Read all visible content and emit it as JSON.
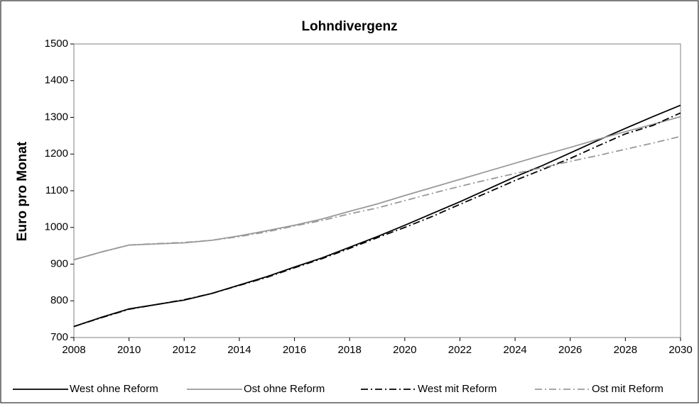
{
  "chart_data": {
    "type": "line",
    "title": "Lohndivergenz",
    "y_label": "Euro pro Monat",
    "x": [
      2008,
      2009,
      2010,
      2011,
      2012,
      2013,
      2014,
      2015,
      2016,
      2017,
      2018,
      2019,
      2020,
      2021,
      2022,
      2023,
      2024,
      2025,
      2026,
      2027,
      2028,
      2029,
      2030
    ],
    "series": [
      {
        "name": "West ohne Reform",
        "color": "#000000",
        "linestyle": "solid",
        "values": [
          730,
          755,
          778,
          790,
          802,
          820,
          843,
          866,
          892,
          917,
          946,
          975,
          1006,
          1038,
          1070,
          1104,
          1138,
          1169,
          1203,
          1237,
          1270,
          1302,
          1333
        ]
      },
      {
        "name": "Ost ohne Reform",
        "color": "#999999",
        "linestyle": "solid",
        "values": [
          912,
          933,
          952,
          955,
          958,
          965,
          977,
          991,
          1006,
          1023,
          1044,
          1064,
          1087,
          1109,
          1131,
          1153,
          1175,
          1197,
          1218,
          1240,
          1261,
          1281,
          1302
        ]
      },
      {
        "name": "West mit Reform",
        "color": "#000000",
        "linestyle": "dashdot",
        "values": [
          730,
          754,
          777,
          790,
          803,
          820,
          842,
          864,
          890,
          915,
          943,
          972,
          1000,
          1030,
          1063,
          1095,
          1128,
          1158,
          1188,
          1222,
          1255,
          1278,
          1312
        ]
      },
      {
        "name": "Ost mit Reform",
        "color": "#999999",
        "linestyle": "dashdot",
        "values": [
          912,
          933,
          952,
          956,
          959,
          965,
          975,
          988,
          1004,
          1019,
          1037,
          1053,
          1073,
          1093,
          1112,
          1130,
          1147,
          1163,
          1180,
          1196,
          1213,
          1230,
          1248
        ]
      }
    ],
    "xlim": [
      2008,
      2030
    ],
    "xticks": [
      2008,
      2010,
      2012,
      2014,
      2016,
      2018,
      2020,
      2022,
      2024,
      2026,
      2028,
      2030
    ],
    "ylim": [
      700,
      1500
    ],
    "yticks": [
      700,
      800,
      900,
      1000,
      1100,
      1200,
      1300,
      1400,
      1500
    ],
    "grid": false,
    "legend": "bottom"
  }
}
